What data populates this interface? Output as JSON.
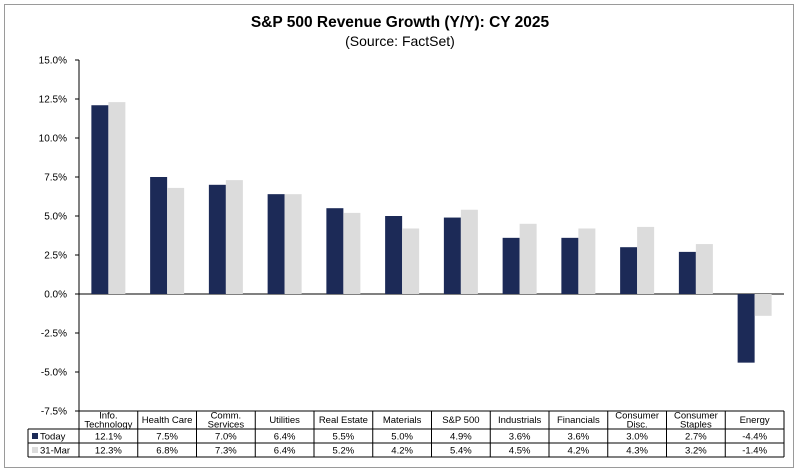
{
  "chart_data": {
    "type": "bar",
    "title": "S&P 500 Revenue Growth (Y/Y): CY 2025",
    "subtitle": "(Source: FactSet)",
    "categories": [
      [
        "Info.",
        "Technology"
      ],
      [
        "Health Care"
      ],
      [
        "Comm.",
        "Services"
      ],
      [
        "Utilities"
      ],
      [
        "Real Estate"
      ],
      [
        "Materials"
      ],
      [
        "S&P 500"
      ],
      [
        "Industrials"
      ],
      [
        "Financials"
      ],
      [
        "Consumer",
        "Disc."
      ],
      [
        "Consumer",
        "Staples"
      ],
      [
        "Energy"
      ]
    ],
    "series": [
      {
        "name": "Today",
        "color": "#1c2a57",
        "values": [
          12.1,
          7.5,
          7.0,
          6.4,
          5.5,
          5.0,
          4.9,
          3.6,
          3.6,
          3.0,
          2.7,
          -4.4
        ],
        "labels": [
          "12.1%",
          "7.5%",
          "7.0%",
          "6.4%",
          "5.5%",
          "5.0%",
          "4.9%",
          "3.6%",
          "3.6%",
          "3.0%",
          "2.7%",
          "-4.4%"
        ]
      },
      {
        "name": "31-Mar",
        "color": "#dcdcdc",
        "values": [
          12.3,
          6.8,
          7.3,
          6.4,
          5.2,
          4.2,
          5.4,
          4.5,
          4.2,
          4.3,
          3.2,
          -1.4
        ],
        "labels": [
          "12.3%",
          "6.8%",
          "7.3%",
          "6.4%",
          "5.2%",
          "4.2%",
          "5.4%",
          "4.5%",
          "4.2%",
          "4.3%",
          "3.2%",
          "-1.4%"
        ]
      }
    ],
    "ylim": [
      -7.5,
      15.0
    ],
    "yticks": [
      15.0,
      12.5,
      10.0,
      7.5,
      5.0,
      2.5,
      0.0,
      -2.5,
      -5.0,
      -7.5
    ],
    "ytick_labels": [
      "15.0%",
      "12.5%",
      "10.0%",
      "7.5%",
      "5.0%",
      "2.5%",
      "0.0%",
      "-2.5%",
      "-5.0%",
      "-7.5%"
    ],
    "grid": false,
    "legend": "data-table"
  }
}
